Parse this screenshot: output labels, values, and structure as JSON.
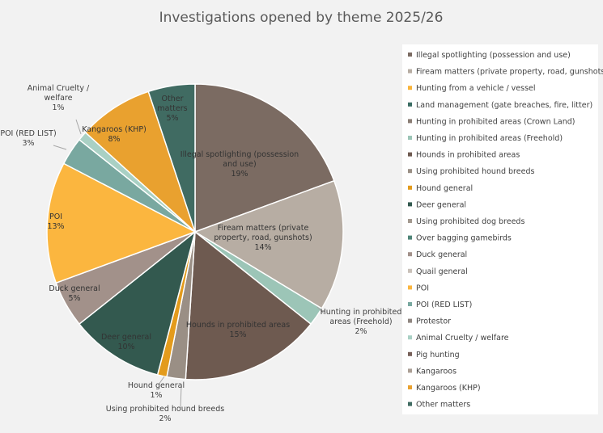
{
  "chart_data": {
    "type": "pie",
    "title": "Investigations opened by theme 2025/26",
    "legend_position": "right",
    "slices": [
      {
        "label": "Illegal spotlighting (possession and use)",
        "value": 19,
        "pct_label": "19%",
        "color": "#7b6b62",
        "label_text": [
          "Illegal spotlighting (possession",
          "and use)"
        ]
      },
      {
        "label": "Fiream matters (private property, road, gunshots)",
        "value": 14,
        "pct_label": "14%",
        "color": "#b7ada3",
        "label_text": [
          "Fiream matters (private",
          "property, road, gunshots)"
        ]
      },
      {
        "label": "Hunting from a vehicle / vessel",
        "value": 0,
        "pct_label": "",
        "color": "#f9b43a",
        "label_text": []
      },
      {
        "label": "Land management (gate breaches, fire, litter)",
        "value": 0,
        "pct_label": "",
        "color": "#3a6c63",
        "label_text": []
      },
      {
        "label": "Hunting in prohibited areas (Crown Land)",
        "value": 0,
        "pct_label": "",
        "color": "#8a7d74",
        "label_text": []
      },
      {
        "label": "Hunting in prohibited areas (Freehold)",
        "value": 2,
        "pct_label": "2%",
        "color": "#9cc5b7",
        "label_text": [
          "Hunting in prohibited",
          "areas (Freehold)"
        ]
      },
      {
        "label": "Hounds in prohibited areas",
        "value": 15,
        "pct_label": "15%",
        "color": "#6e5a50",
        "label_text": [
          "Hounds in prohibited areas"
        ]
      },
      {
        "label": "Using prohibited hound breeds",
        "value": 2,
        "pct_label": "2%",
        "color": "#9a8f85",
        "label_text": [
          "Using prohibited hound breeds"
        ]
      },
      {
        "label": "Hound general",
        "value": 1,
        "pct_label": "1%",
        "color": "#e39b1c",
        "label_text": [
          "Hound general"
        ]
      },
      {
        "label": "Deer general",
        "value": 10,
        "pct_label": "10%",
        "color": "#33594f",
        "label_text": [
          "Deer general"
        ]
      },
      {
        "label": "Using prohibited dog breeds",
        "value": 0,
        "pct_label": "",
        "color": "#a3998f",
        "label_text": []
      },
      {
        "label": "Over bagging gamebirds",
        "value": 0,
        "pct_label": "",
        "color": "#4f8578",
        "label_text": []
      },
      {
        "label": "Duck general",
        "value": 5,
        "pct_label": "5%",
        "color": "#a2918a",
        "label_text": [
          "Duck general"
        ]
      },
      {
        "label": "Quail general",
        "value": 0,
        "pct_label": "",
        "color": "#c9c1b9",
        "label_text": []
      },
      {
        "label": "POI",
        "value": 13,
        "pct_label": "13%",
        "color": "#fbb63f",
        "label_text": [
          "POI"
        ]
      },
      {
        "label": "POI (RED LIST)",
        "value": 3,
        "pct_label": "3%",
        "color": "#79a8a0",
        "label_text": [
          "POI (RED LIST)"
        ]
      },
      {
        "label": "Protestor",
        "value": 0,
        "pct_label": "",
        "color": "#8f8680",
        "label_text": []
      },
      {
        "label": "Animal Cruelty / welfare",
        "value": 1,
        "pct_label": "1%",
        "color": "#a9d0c4",
        "label_text": [
          "Animal Cruelty /",
          "welfare"
        ]
      },
      {
        "label": "Pig hunting",
        "value": 0,
        "pct_label": "",
        "color": "#765f58",
        "label_text": []
      },
      {
        "label": "Kangaroos",
        "value": 0,
        "pct_label": "",
        "color": "#ab9f95",
        "label_text": []
      },
      {
        "label": "Kangaroos (KHP)",
        "value": 8,
        "pct_label": "8%",
        "color": "#e9a12f",
        "label_text": [
          "Kangaroos (KHP)"
        ]
      },
      {
        "label": "Other matters",
        "value": 5,
        "pct_label": "5%",
        "color": "#406b62",
        "label_text": [
          "Other",
          "matters"
        ]
      }
    ]
  }
}
